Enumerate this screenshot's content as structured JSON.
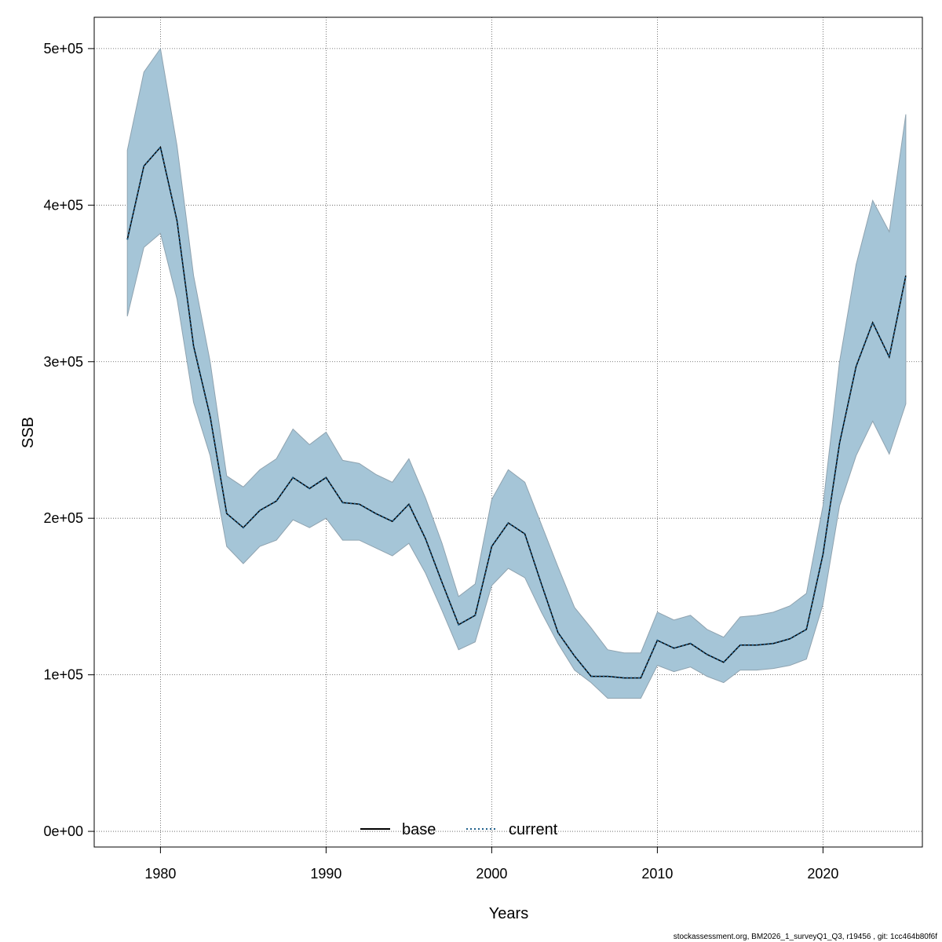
{
  "chart_data": {
    "type": "area",
    "title": "",
    "xlabel": "Years",
    "ylabel": "SSB",
    "xlim": [
      1976,
      2026
    ],
    "ylim": [
      -10000,
      520000
    ],
    "x_ticks": [
      1980,
      1990,
      2000,
      2010,
      2020
    ],
    "x_tick_labels": [
      "1980",
      "1990",
      "2000",
      "2010",
      "2020"
    ],
    "y_ticks": [
      0,
      100000,
      200000,
      300000,
      400000,
      500000
    ],
    "y_tick_labels": [
      "0e+00",
      "1e+05",
      "2e+05",
      "3e+05",
      "4e+05",
      "5e+05"
    ],
    "grid": true,
    "legend_position": "bottom-center",
    "colors": {
      "band": "#a5c5d7",
      "band_edge": "#8fa3b0",
      "current": "#1f5f8b",
      "base": "#000000",
      "grid": "#555555"
    },
    "x": [
      1978,
      1979,
      1980,
      1981,
      1982,
      1983,
      1984,
      1985,
      1986,
      1987,
      1988,
      1989,
      1990,
      1991,
      1992,
      1993,
      1994,
      1995,
      1996,
      1997,
      1998,
      1999,
      2000,
      2001,
      2002,
      2003,
      2004,
      2005,
      2006,
      2007,
      2008,
      2009,
      2010,
      2011,
      2012,
      2013,
      2014,
      2015,
      2016,
      2017,
      2018,
      2019,
      2020,
      2021,
      2022,
      2023,
      2024,
      2025
    ],
    "series": [
      {
        "name": "base",
        "style": "solid",
        "values": [
          378000,
          425000,
          437000,
          390000,
          310000,
          265000,
          203000,
          194000,
          205000,
          211000,
          226000,
          219000,
          226000,
          210000,
          209000,
          203000,
          198000,
          209000,
          187000,
          159000,
          132000,
          138000,
          182000,
          197000,
          190000,
          158000,
          127000,
          112000,
          99000,
          99000,
          98000,
          98000,
          122000,
          117000,
          120000,
          113000,
          108000,
          119000,
          119000,
          120000,
          123000,
          129000,
          177000,
          248000,
          297000,
          325000,
          303000,
          355000
        ]
      },
      {
        "name": "current",
        "style": "dotted",
        "values": [
          378000,
          425000,
          437000,
          390000,
          310000,
          265000,
          203000,
          194000,
          205000,
          211000,
          226000,
          219000,
          226000,
          210000,
          209000,
          203000,
          198000,
          209000,
          187000,
          159000,
          132000,
          138000,
          182000,
          197000,
          190000,
          158000,
          127000,
          112000,
          99000,
          99000,
          98000,
          98000,
          122000,
          117000,
          120000,
          113000,
          108000,
          119000,
          119000,
          120000,
          123000,
          129000,
          177000,
          248000,
          297000,
          325000,
          303000,
          355000
        ]
      }
    ],
    "band_lower": [
      329000,
      373000,
      382000,
      340000,
      274000,
      240000,
      182000,
      171000,
      182000,
      186000,
      199000,
      194000,
      200000,
      186000,
      186000,
      181000,
      176000,
      184000,
      165000,
      141000,
      116000,
      121000,
      157000,
      168000,
      162000,
      140000,
      120000,
      103000,
      95000,
      85000,
      85000,
      85000,
      106000,
      102000,
      105000,
      99000,
      95000,
      103000,
      103000,
      104000,
      106000,
      110000,
      145000,
      208000,
      240000,
      262000,
      241000,
      273000
    ],
    "band_upper": [
      435000,
      485000,
      500000,
      438000,
      355000,
      300000,
      227000,
      220000,
      231000,
      238000,
      257000,
      247000,
      255000,
      237000,
      235000,
      228000,
      223000,
      238000,
      213000,
      184000,
      150000,
      158000,
      212000,
      231000,
      223000,
      196000,
      169000,
      143000,
      130000,
      116000,
      114000,
      114000,
      140000,
      135000,
      138000,
      129000,
      124000,
      137000,
      138000,
      140000,
      144000,
      152000,
      208000,
      300000,
      362000,
      403000,
      383000,
      458000
    ]
  },
  "legend": {
    "base_label": "base",
    "current_label": "current"
  },
  "footer": "stockassessment.org, BM2026_1_surveyQ1_Q3, r19456 , git: 1cc464b80f6f"
}
